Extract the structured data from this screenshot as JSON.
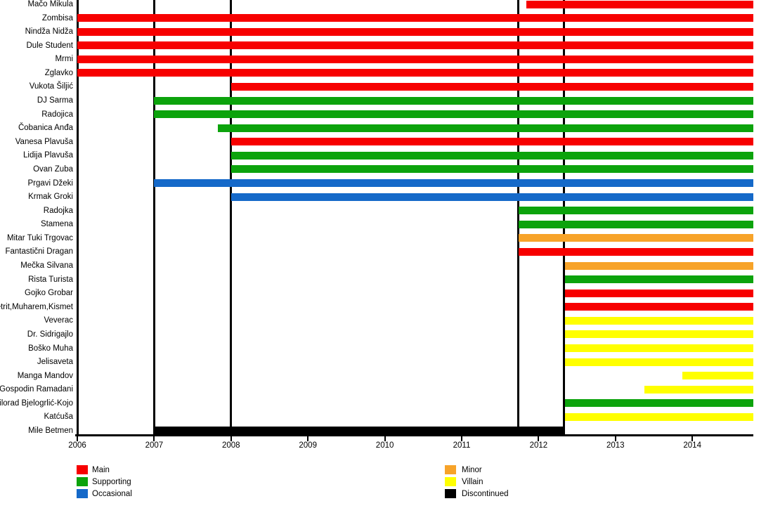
{
  "chart_data": {
    "type": "bar",
    "subtype": "character-role-timeline",
    "title": "",
    "x_axis": {
      "label": "",
      "ticks": [
        "2006",
        "2007",
        "2008",
        "2009",
        "2010",
        "2011",
        "2012",
        "2013",
        "2014"
      ],
      "min": 2006,
      "max": 2014.8,
      "grid": false
    },
    "dividers_years": [
      2006,
      2007,
      2008,
      2011.74,
      2012.33
    ],
    "legend": {
      "position": "bottom",
      "entries": [
        {
          "label": "Main",
          "color": "#f70000"
        },
        {
          "label": "Supporting",
          "color": "#0ca30c"
        },
        {
          "label": "Occasional",
          "color": "#1569c9"
        },
        {
          "label": "Minor",
          "color": "#f7a329"
        },
        {
          "label": "Villain",
          "color": "#ffff00"
        },
        {
          "label": "Discontinued",
          "color": "#000000"
        }
      ]
    },
    "rows": [
      {
        "name": "Mačo Mikula",
        "role": "Main",
        "start": 2011.84,
        "end": 2014.79
      },
      {
        "name": "Zombisa",
        "role": "Main",
        "start": 2006.0,
        "end": 2014.79
      },
      {
        "name": "Nindža Nidža",
        "role": "Main",
        "start": 2006.0,
        "end": 2014.79
      },
      {
        "name": "Dule Student",
        "role": "Main",
        "start": 2006.0,
        "end": 2014.79
      },
      {
        "name": "Mrmi",
        "role": "Main",
        "start": 2006.0,
        "end": 2014.79
      },
      {
        "name": "Zglavko",
        "role": "Main",
        "start": 2006.0,
        "end": 2014.79
      },
      {
        "name": "Vukota Šiljić",
        "role": "Main",
        "start": 2008.0,
        "end": 2014.79
      },
      {
        "name": "DJ Sarma",
        "role": "Supporting",
        "start": 2007.0,
        "end": 2014.79
      },
      {
        "name": "Radojica",
        "role": "Supporting",
        "start": 2007.0,
        "end": 2014.79
      },
      {
        "name": "Čobanica Anđa",
        "role": "Supporting",
        "start": 2007.83,
        "end": 2014.79
      },
      {
        "name": "Vanesa Plavuša",
        "role": "Main",
        "start": 2008.0,
        "end": 2014.79
      },
      {
        "name": "Lidija Plavuša",
        "role": "Supporting",
        "start": 2008.0,
        "end": 2014.79
      },
      {
        "name": "Ovan Zuba",
        "role": "Supporting",
        "start": 2008.0,
        "end": 2014.79
      },
      {
        "name": "Prgavi Džeki",
        "role": "Occasional",
        "start": 2007.0,
        "end": 2014.79
      },
      {
        "name": "Krmak Groki",
        "role": "Occasional",
        "start": 2008.0,
        "end": 2014.79
      },
      {
        "name": "Radojka",
        "role": "Supporting",
        "start": 2011.74,
        "end": 2014.79
      },
      {
        "name": "Stamena",
        "role": "Supporting",
        "start": 2011.74,
        "end": 2014.79
      },
      {
        "name": "Mitar Tuki Trgovac",
        "role": "Minor",
        "start": 2011.74,
        "end": 2014.79
      },
      {
        "name": "Fantastični Dragan",
        "role": "Main",
        "start": 2011.74,
        "end": 2014.79
      },
      {
        "name": "Mečka Silvana",
        "role": "Minor",
        "start": 2012.34,
        "end": 2014.79
      },
      {
        "name": "Rista Turista",
        "role": "Supporting",
        "start": 2012.34,
        "end": 2014.79
      },
      {
        "name": "Gojko Grobar",
        "role": "Main",
        "start": 2012.34,
        "end": 2014.79
      },
      {
        "name": "Petrit,Muharem,Kismet",
        "role": "Main",
        "start": 2012.34,
        "end": 2014.79
      },
      {
        "name": "Veverac",
        "role": "Villain",
        "start": 2012.34,
        "end": 2014.79
      },
      {
        "name": "Dr. Sidrigajlo",
        "role": "Villain",
        "start": 2012.34,
        "end": 2014.79
      },
      {
        "name": "Boško Muha",
        "role": "Villain",
        "start": 2012.34,
        "end": 2014.79
      },
      {
        "name": "Jelisaveta",
        "role": "Villain",
        "start": 2012.34,
        "end": 2014.79
      },
      {
        "name": "Manga Mandov",
        "role": "Villain",
        "start": 2013.87,
        "end": 2014.79
      },
      {
        "name": "Gospodin Ramadani",
        "role": "Villain",
        "start": 2013.38,
        "end": 2014.79
      },
      {
        "name": "Milorad Bjelogrlić-Kojo",
        "role": "Supporting",
        "start": 2012.34,
        "end": 2014.79
      },
      {
        "name": "Katćuša",
        "role": "Villain",
        "start": 2012.34,
        "end": 2014.79
      },
      {
        "name": "Mile Betmen",
        "role": "Discontinued",
        "start": 2007.0,
        "end": 2012.34
      }
    ]
  }
}
